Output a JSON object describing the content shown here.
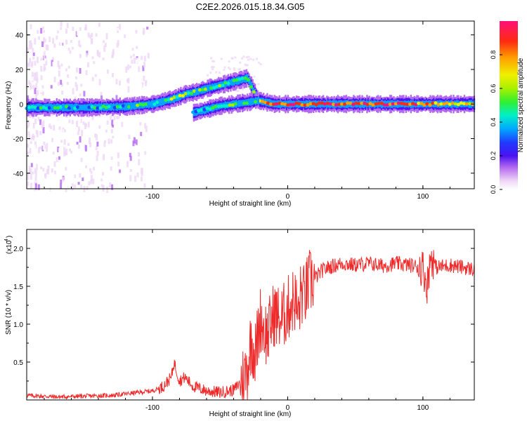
{
  "figure_title": "C2E2.2026.015.18.34.G05",
  "chart_data": [
    {
      "type": "heatmap",
      "title": "C2E2.2026.015.18.34.G05",
      "xlabel": "Height of straight line (km)",
      "ylabel": "Frequency (Hz)",
      "xlim": [
        -193,
        138
      ],
      "ylim": [
        -49,
        48
      ],
      "xticks": [
        -100,
        0,
        100
      ],
      "xtick_labels": [
        "-100",
        "0",
        "100"
      ],
      "yticks": [
        40,
        20,
        0,
        -20,
        -40
      ],
      "ytick_labels": [
        "40",
        "20",
        "0",
        "-20",
        "-40"
      ],
      "colorbar": {
        "label": "Normalized spectral amplitude",
        "range": [
          0,
          1
        ],
        "ticks": [
          0.0,
          0.2,
          0.4,
          0.6,
          0.8
        ],
        "tick_labels": [
          "0.0",
          "0.2",
          "0.4",
          "0.6",
          "0.8"
        ]
      },
      "main_ridge": {
        "x": [
          -193,
          -150,
          -120,
          -100,
          -85,
          -75,
          -68,
          -60,
          -50,
          -40,
          -30,
          -22,
          -10,
          0,
          20,
          60,
          100,
          138
        ],
        "frequency": [
          -2,
          -2,
          -1.5,
          0,
          3,
          6,
          7,
          9,
          11,
          13,
          15,
          2,
          0,
          0,
          0,
          0,
          0,
          0
        ],
        "peak_amplitude": [
          0.45,
          0.45,
          0.45,
          0.5,
          0.55,
          0.6,
          0.55,
          0.5,
          0.55,
          0.5,
          0.4,
          0.8,
          0.85,
          0.9,
          0.95,
          0.95,
          0.9,
          0.7
        ]
      },
      "secondary_branch": {
        "x": [
          -70,
          -60,
          -50,
          -40,
          -30,
          -22
        ],
        "frequency": [
          -5,
          -3,
          -1,
          0,
          1,
          2
        ],
        "peak_amplitude": [
          0.4,
          0.45,
          0.5,
          0.5,
          0.45,
          0.6
        ]
      }
    },
    {
      "type": "line",
      "xlabel": "Height of straight line (km)",
      "ylabel": "SNR (10 * v/v)",
      "scale_label": "(x10",
      "scale_exponent": "4",
      "color": "#ef2a2a",
      "xlim": [
        -193,
        138
      ],
      "ylim": [
        0,
        2.25
      ],
      "xticks": [
        -100,
        0,
        100
      ],
      "xtick_labels": [
        "-100",
        "0",
        "100"
      ],
      "yticks": [
        0.5,
        1.0,
        1.5,
        2.0
      ],
      "ytick_labels": [
        "0.5",
        "1.0",
        "1.5",
        "2.0"
      ],
      "series": [
        {
          "name": "SNR",
          "x": [
            -193,
            -170,
            -150,
            -130,
            -115,
            -100,
            -92,
            -86,
            -84,
            -80,
            -76,
            -70,
            -60,
            -50,
            -40,
            -34,
            -30,
            -27,
            -24,
            -20,
            -18,
            -15,
            -10,
            -5,
            0,
            5,
            8,
            10,
            12,
            16,
            20,
            25,
            30,
            40,
            50,
            60,
            70,
            80,
            90,
            100,
            103,
            106,
            110,
            120,
            130,
            138
          ],
          "y": [
            0.06,
            0.04,
            0.05,
            0.06,
            0.09,
            0.12,
            0.18,
            0.3,
            0.5,
            0.25,
            0.3,
            0.18,
            0.12,
            0.1,
            0.13,
            0.25,
            0.4,
            0.8,
            0.6,
            1.1,
            0.95,
            0.85,
            1.15,
            1.05,
            1.2,
            1.35,
            1.1,
            1.45,
            1.35,
            1.55,
            1.6,
            1.7,
            1.75,
            1.8,
            1.78,
            1.8,
            1.77,
            1.8,
            1.78,
            1.75,
            1.5,
            1.9,
            1.75,
            1.78,
            1.75,
            1.72
          ]
        }
      ]
    }
  ]
}
